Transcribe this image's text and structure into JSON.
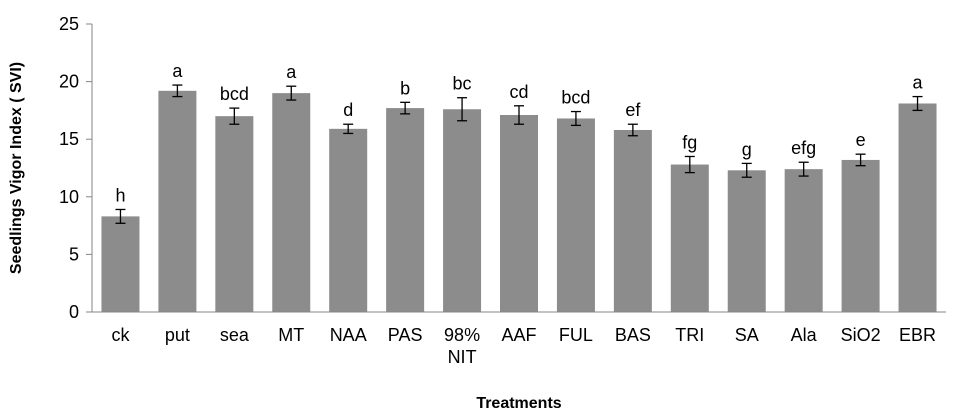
{
  "chart_data": {
    "type": "bar",
    "title": "",
    "xlabel": "Treatments",
    "ylabel": "Seedlings Vigor Index ( SVI)",
    "ylim": [
      0,
      25
    ],
    "yticks": [
      0,
      5,
      10,
      15,
      20,
      25
    ],
    "grid": false,
    "legend": "none",
    "bar_color": "#8c8c8c",
    "categories": [
      "ck",
      "put",
      "sea",
      "MT",
      "NAA",
      "PAS",
      "98%\nNIT",
      "AAF",
      "FUL",
      "BAS",
      "TRI",
      "SA",
      "Ala",
      "SiO2",
      "EBR"
    ],
    "values": [
      8.3,
      19.2,
      17.0,
      19.0,
      15.9,
      17.7,
      17.6,
      17.1,
      16.8,
      15.8,
      12.8,
      12.3,
      12.4,
      13.2,
      18.1
    ],
    "errors": [
      0.6,
      0.5,
      0.7,
      0.6,
      0.4,
      0.5,
      1.0,
      0.8,
      0.6,
      0.5,
      0.7,
      0.6,
      0.6,
      0.5,
      0.6
    ],
    "significance": [
      "h",
      "a",
      "bcd",
      "a",
      "d",
      "b",
      "bc",
      "cd",
      "bcd",
      "ef",
      "fg",
      "g",
      "efg",
      "e",
      "a"
    ]
  }
}
